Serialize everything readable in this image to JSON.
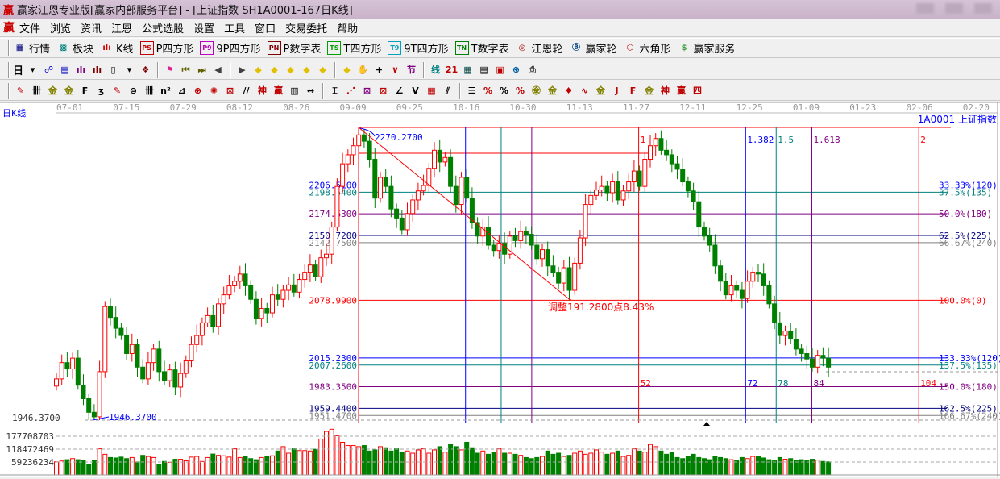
{
  "window": {
    "logo": "赢",
    "title": "赢家江恩专业版[赢家内部服务平台] - [上证指数  SH1A0001-167日K线]"
  },
  "menu": {
    "logo": "赢",
    "items": [
      "文件",
      "浏览",
      "资讯",
      "江恩",
      "公式选股",
      "设置",
      "工具",
      "窗口",
      "交易委托",
      "帮助"
    ]
  },
  "toolbar1": [
    {
      "icon": "quote-table-icon",
      "glyph": "▦",
      "color": "#000080",
      "label": "行情"
    },
    {
      "icon": "sector-blocks-icon",
      "glyph": "▩",
      "color": "#008080",
      "label": "板块"
    },
    {
      "icon": "kline-icon",
      "glyph": "ılı",
      "color": "#d00000",
      "label": "K线"
    },
    {
      "icon": "ps-box-icon",
      "glyph": "PS",
      "color": "#c00000",
      "box": true,
      "label": "P四方形"
    },
    {
      "icon": "p9-box-icon",
      "glyph": "P9",
      "color": "#c000c0",
      "box": true,
      "label": "9P四方形"
    },
    {
      "icon": "pn-box-icon",
      "glyph": "PN",
      "color": "#800000",
      "box": true,
      "label": "P数字表"
    },
    {
      "icon": "ts-box-icon",
      "glyph": "TS",
      "color": "#00a000",
      "box": true,
      "label": "T四方形"
    },
    {
      "icon": "t9-box-icon",
      "glyph": "T9",
      "color": "#00a0c0",
      "box": true,
      "label": "9T四方形"
    },
    {
      "icon": "tn-box-icon",
      "glyph": "TN",
      "color": "#008000",
      "box": true,
      "label": "T数字表"
    },
    {
      "icon": "gann-wheel-icon",
      "glyph": "◎",
      "color": "#a00000",
      "label": "江恩轮"
    },
    {
      "icon": "big-wheel-icon",
      "glyph": "Ⓑ",
      "color": "#004080",
      "label": "赢家轮"
    },
    {
      "icon": "hexagon-icon",
      "glyph": "⬡",
      "color": "#c00000",
      "label": "六角形"
    },
    {
      "icon": "dollar-icon",
      "glyph": "$",
      "color": "#40a040",
      "label": "赢家服务"
    }
  ],
  "toolbar2": {
    "period": "日",
    "icons": [
      {
        "name": "period-dropdown-icon",
        "glyph": "▾",
        "color": "#000"
      },
      {
        "name": "chart-pattern-icon",
        "glyph": "☍",
        "color": "#0000c0"
      },
      {
        "name": "clipboard-icon",
        "glyph": "▤",
        "color": "#0000c0"
      },
      {
        "name": "bars3-icon",
        "glyph": "ılı",
        "color": "#800080"
      },
      {
        "name": "bars9-icon",
        "glyph": "ılı",
        "color": "#800000"
      },
      {
        "name": "candle-icon",
        "glyph": "▯",
        "color": "#000"
      },
      {
        "name": "candle-dropdown-icon",
        "glyph": "▾",
        "color": "#000"
      },
      {
        "name": "map-icon",
        "glyph": "❖",
        "color": "#800000"
      },
      {
        "name": "flag-icon",
        "glyph": "⚑",
        "color": "#e0208c"
      },
      {
        "name": "first-icon",
        "glyph": "⏮",
        "color": "#606000"
      },
      {
        "name": "last-icon",
        "glyph": "⏭",
        "color": "#606000"
      },
      {
        "name": "prev-icon",
        "glyph": "◀",
        "color": "#404040"
      },
      {
        "name": "next-icon",
        "glyph": "▶",
        "color": "#404040"
      },
      {
        "name": "shift-left-icon",
        "glyph": "◆",
        "color": "#e0c000"
      },
      {
        "name": "shift-right-icon",
        "glyph": "◆",
        "color": "#e0c000"
      },
      {
        "name": "zoom-h-icon",
        "glyph": "◆",
        "color": "#e0c000"
      },
      {
        "name": "zoom-in-icon",
        "glyph": "◆",
        "color": "#e0c000"
      },
      {
        "name": "zoom-out-icon",
        "glyph": "◆",
        "color": "#e0c000"
      },
      {
        "name": "zoom-v-icon",
        "glyph": "◆",
        "color": "#e0c000"
      },
      {
        "name": "hand-icon",
        "glyph": "✋",
        "color": "#000"
      },
      {
        "name": "crosshair-icon",
        "glyph": "+",
        "color": "#000"
      },
      {
        "name": "zigzag-icon",
        "glyph": "∨",
        "color": "#c00000"
      },
      {
        "name": "joint-icon",
        "glyph": "节",
        "color": "#800080"
      },
      {
        "name": "line-icon",
        "glyph": "线",
        "color": "#008080"
      },
      {
        "name": "calendar-icon",
        "glyph": "21",
        "color": "#c00000"
      },
      {
        "name": "calculator-icon",
        "glyph": "▦",
        "color": "#004040"
      },
      {
        "name": "notes-icon",
        "glyph": "▤",
        "color": "#000"
      },
      {
        "name": "save-icon",
        "glyph": "▣",
        "color": "#c00000"
      },
      {
        "name": "network-icon",
        "glyph": "⊕",
        "color": "#0060a0"
      },
      {
        "name": "printer-icon",
        "glyph": "⎙",
        "color": "#404040"
      }
    ]
  },
  "toolbar3": [
    {
      "name": "pen-icon",
      "glyph": "✎",
      "color": "#c00000"
    },
    {
      "name": "vlines-icon",
      "glyph": "卌",
      "color": "#000"
    },
    {
      "name": "gold-lines-icon",
      "glyph": "金",
      "color": "#808000"
    },
    {
      "name": "gold-lines2-icon",
      "glyph": "金",
      "color": "#808000"
    },
    {
      "name": "f-lines-icon",
      "glyph": "F",
      "color": "#000"
    },
    {
      "name": "spiral-icon",
      "glyph": "ʒ",
      "color": "#000"
    },
    {
      "name": "marker-icon",
      "glyph": "✎",
      "color": "#c00000"
    },
    {
      "name": "circle-grid-icon",
      "glyph": "⊜",
      "color": "#000"
    },
    {
      "name": "time-lines-icon",
      "glyph": "卌",
      "color": "#000"
    },
    {
      "name": "n2-lines-icon",
      "glyph": "n²",
      "color": "#000"
    },
    {
      "name": "triangle-lines-icon",
      "glyph": "⊿",
      "color": "#000"
    },
    {
      "name": "target-icon",
      "glyph": "⊕",
      "color": "#c00000"
    },
    {
      "name": "radar-icon",
      "glyph": "✺",
      "color": "#c00000"
    },
    {
      "name": "square-target-icon",
      "glyph": "⊠",
      "color": "#c00000"
    },
    {
      "name": "slash-lines-icon",
      "glyph": "//",
      "color": "#000"
    },
    {
      "name": "shen-lines-icon",
      "glyph": "神",
      "color": "#c00000"
    },
    {
      "name": "ying-lines-icon",
      "glyph": "赢",
      "color": "#c00000"
    },
    {
      "name": "ruler-icon",
      "glyph": "▥",
      "color": "#000"
    },
    {
      "name": "measure-icon",
      "glyph": "↔",
      "color": "#000"
    },
    {
      "name": "box-lines-icon",
      "glyph": "⌶",
      "color": "#000"
    },
    {
      "name": "fan-red-icon",
      "glyph": "⋰",
      "color": "#c00000"
    },
    {
      "name": "fan-box-icon",
      "glyph": "⊠",
      "color": "#800080"
    },
    {
      "name": "fan-box2-icon",
      "glyph": "⊠",
      "color": "#c00000"
    },
    {
      "name": "angle-icon",
      "glyph": "∠",
      "color": "#000"
    },
    {
      "name": "v-icon",
      "glyph": "V",
      "color": "#000"
    },
    {
      "name": "grid-icon",
      "glyph": "▦",
      "color": "#c00000"
    },
    {
      "name": "parallel-icon",
      "glyph": "⫽",
      "color": "#000"
    },
    {
      "name": "level-lines-icon",
      "glyph": "☰",
      "color": "#000"
    },
    {
      "name": "percent-red-icon",
      "glyph": "%",
      "color": "#c00000"
    },
    {
      "name": "percent-icon",
      "glyph": "%",
      "color": "#000"
    },
    {
      "name": "percent-lines-icon",
      "glyph": "%",
      "color": "#c00000"
    },
    {
      "name": "gold-circle-icon",
      "glyph": "㊎",
      "color": "#808000"
    },
    {
      "name": "gold-level-icon",
      "glyph": "金",
      "color": "#808000"
    },
    {
      "name": "torch-icon",
      "glyph": "♦",
      "color": "#c00000"
    },
    {
      "name": "wave-icon",
      "glyph": "∿",
      "color": "#c00000"
    },
    {
      "name": "gold-bar-icon",
      "glyph": "金",
      "color": "#808000"
    },
    {
      "name": "j-fan-icon",
      "glyph": "J",
      "color": "#c00000"
    },
    {
      "name": "f-fan-icon",
      "glyph": "F",
      "color": "#c00000"
    },
    {
      "name": "gold-fan-icon",
      "glyph": "金",
      "color": "#808000"
    },
    {
      "name": "shen-fan-icon",
      "glyph": "神",
      "color": "#c00000"
    },
    {
      "name": "ying-fan-icon",
      "glyph": "赢",
      "color": "#c00000"
    },
    {
      "name": "si-fan-icon",
      "glyph": "四",
      "color": "#c00000"
    }
  ],
  "chart": {
    "period_label": "日K线",
    "symbol_label": "1A0001  上证指数",
    "dates": [
      "07-01",
      "07-15",
      "07-29",
      "08-12",
      "08-26",
      "09-09",
      "09-25",
      "10-16",
      "10-30",
      "11-13",
      "11-27",
      "12-11",
      "12-25",
      "01-09",
      "01-23",
      "02-06",
      "02-20"
    ],
    "high_label": "2270.2700",
    "low_label": "1946.3700",
    "low_axis_label": "1946.3700",
    "adjust_label": "调整191.2800点8.43%",
    "up_color": "#ff0000",
    "down_color": "#008000",
    "levels": [
      {
        "price": 2206.51,
        "left": "2206.5100",
        "right": "33.33%(120)",
        "color": "#0000ff"
      },
      {
        "price": 2198.54,
        "left": "2198.5400",
        "right": "37.5%(135)",
        "color": "#008080"
      },
      {
        "price": 2174.63,
        "left": "2174.6300",
        "right": "50.0%(180)",
        "color": "#800080"
      },
      {
        "price": 2150.72,
        "left": "2150.7200",
        "right": "62.5%(225)",
        "color": "#000080"
      },
      {
        "price": 2142.75,
        "left": "2142.7500",
        "right": "66.67%(240)",
        "color": "#808080"
      },
      {
        "price": 2078.99,
        "left": "2078.9900",
        "right": "100.0%(0)",
        "color": "#ff0000"
      },
      {
        "price": 2015.23,
        "left": "2015.2300",
        "right": "133.33%(120)",
        "color": "#0000ff"
      },
      {
        "price": 2007.26,
        "left": "2007.2600",
        "right": "137.5%(135)",
        "color": "#008080"
      },
      {
        "price": 1983.35,
        "left": "1983.3500",
        "right": "150.0%(180)",
        "color": "#800080"
      },
      {
        "price": 1959.44,
        "left": "1959.4400",
        "right": "162.5%(225)",
        "color": "#000080"
      },
      {
        "price": 1951.47,
        "left": "1951.4700",
        "right": "166.67%(240)",
        "color": "#808080"
      }
    ],
    "time_lines": [
      {
        "bar": 55,
        "top": "",
        "bottom": "",
        "color": "#ff0000"
      },
      {
        "bar": 76,
        "top": "",
        "bottom": "",
        "color": "#0000ff"
      },
      {
        "bar": 83,
        "top": "",
        "bottom": "",
        "color": "#008080"
      },
      {
        "bar": 89,
        "top": "",
        "bottom": "",
        "color": "#800080"
      },
      {
        "bar": 110,
        "top": "1",
        "bottom": "52",
        "color": "#ff0000"
      },
      {
        "bar": 131,
        "top": "1.382",
        "bottom": "72",
        "color": "#0000ff"
      },
      {
        "bar": 137,
        "top": "1.5",
        "bottom": "78",
        "color": "#008080"
      },
      {
        "bar": 144,
        "top": "1.618",
        "bottom": "84",
        "color": "#800080"
      },
      {
        "bar": 165,
        "top": "2",
        "bottom": "104",
        "color": "#ff0000"
      }
    ],
    "volume_axis": [
      "177708703",
      "118472469",
      "59236234"
    ]
  },
  "chart_data": {
    "type": "candlestick",
    "price_range": [
      1946.37,
      2270.27
    ],
    "close": [
      1992,
      2010,
      2003,
      2015,
      1985,
      1970,
      1955,
      1950,
      2000,
      2072,
      2060,
      2048,
      2040,
      2020,
      2030,
      2005,
      1992,
      2010,
      2025,
      2000,
      1990,
      2002,
      1983,
      1998,
      2012,
      2030,
      2040,
      2054,
      2062,
      2050,
      2075,
      2085,
      2095,
      2100,
      2108,
      2095,
      2080,
      2059,
      2070,
      2065,
      2085,
      2080,
      2090,
      2096,
      2088,
      2102,
      2110,
      2118,
      2105,
      2126,
      2130,
      2160,
      2205,
      2230,
      2240,
      2250,
      2262,
      2255,
      2235,
      2192,
      2215,
      2205,
      2180,
      2170,
      2157,
      2175,
      2190,
      2200,
      2206,
      2225,
      2245,
      2232,
      2237,
      2205,
      2185,
      2215,
      2192,
      2165,
      2150,
      2160,
      2140,
      2134,
      2142,
      2130,
      2150,
      2145,
      2155,
      2152,
      2140,
      2125,
      2135,
      2117,
      2110,
      2098,
      2115,
      2090,
      2120,
      2148,
      2185,
      2195,
      2201,
      2205,
      2198,
      2210,
      2190,
      2200,
      2210,
      2222,
      2205,
      2235,
      2250,
      2258,
      2245,
      2240,
      2230,
      2224,
      2210,
      2200,
      2188,
      2160,
      2150,
      2140,
      2117,
      2100,
      2085,
      2095,
      2090,
      2081,
      2100,
      2110,
      2108,
      2095,
      2075,
      2054,
      2040,
      2045,
      2036,
      2025,
      2020,
      2014,
      2005,
      2018,
      2015,
      2005
    ],
    "volume_millions": [
      60,
      64,
      70,
      75,
      70,
      65,
      47,
      68,
      120,
      95,
      80,
      78,
      82,
      75,
      80,
      60,
      90,
      85,
      80,
      48,
      62,
      58,
      72,
      72,
      65,
      82,
      85,
      62,
      80,
      96,
      90,
      88,
      82,
      120,
      80,
      86,
      75,
      70,
      80,
      84,
      88,
      110,
      130,
      100,
      120,
      112,
      112,
      110,
      118,
      165,
      200,
      210,
      180,
      150,
      135,
      135,
      130,
      135,
      110,
      115,
      130,
      125,
      110,
      120,
      105,
      110,
      100,
      115,
      120,
      100,
      115,
      130,
      105,
      140,
      130,
      115,
      150,
      125,
      100,
      110,
      95,
      105,
      120,
      100,
      100,
      95,
      90,
      80,
      75,
      80,
      85,
      110,
      95,
      100,
      85,
      90,
      100,
      110,
      95,
      100,
      115,
      105,
      95,
      100,
      110,
      85,
      90,
      120,
      110,
      105,
      140,
      130,
      110,
      95,
      105,
      80,
      75,
      85,
      95,
      80,
      75,
      70,
      85,
      80,
      75,
      70,
      68,
      80,
      75,
      85,
      85,
      78,
      70,
      65,
      80,
      72,
      75,
      68,
      70,
      65,
      72,
      68,
      62,
      60
    ]
  }
}
